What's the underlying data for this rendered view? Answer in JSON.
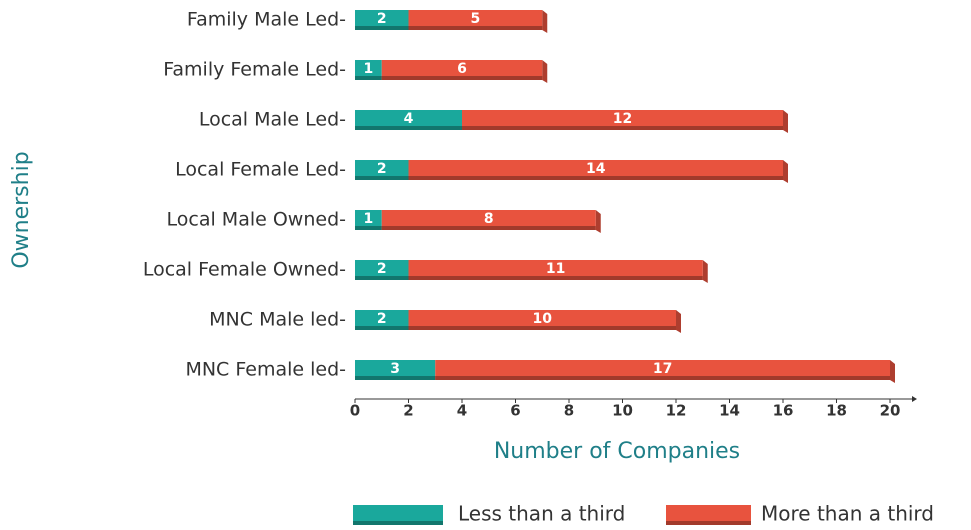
{
  "chart_data": {
    "type": "stacked-bar-horizontal",
    "categories": [
      "Family Male Led-",
      "Family Female Led-",
      "Local Male Led-",
      "Local Female Led-",
      "Local Male Owned-",
      "Local Female Owned-",
      "MNC Male led-",
      "MNC Female led-"
    ],
    "series": [
      {
        "name": "Less than a third",
        "color": "#1aa89c",
        "values": [
          2,
          1,
          4,
          2,
          1,
          2,
          2,
          3
        ]
      },
      {
        "name": "More than a third",
        "color": "#e8533e",
        "values": [
          5,
          6,
          12,
          14,
          8,
          11,
          10,
          17
        ]
      }
    ],
    "xlabel": "Number of Companies",
    "ylabel": "Ownership",
    "xlim": [
      0,
      20
    ],
    "xticks": [
      0,
      2,
      4,
      6,
      8,
      10,
      12,
      14,
      16,
      18,
      20
    ]
  }
}
